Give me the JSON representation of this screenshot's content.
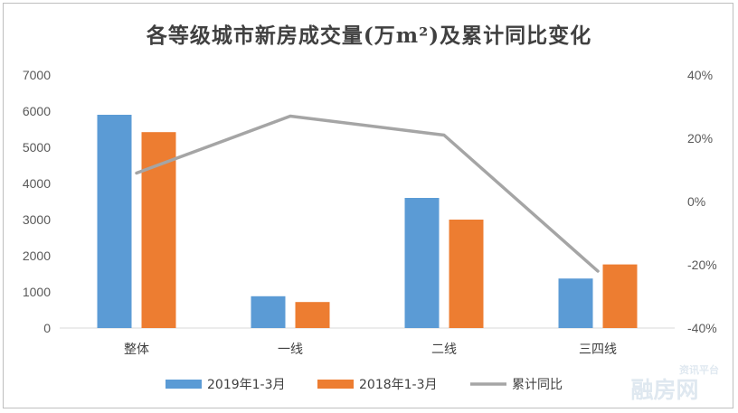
{
  "chart_data": {
    "type": "bar",
    "title": "各等级城市新房成交量(万m²)及累计同比变化",
    "categories": [
      "整体",
      "一线",
      "二线",
      "三四线"
    ],
    "series": [
      {
        "name": "2019年1-3月",
        "type": "bar",
        "axis": "left",
        "color": "#5b9bd5",
        "values": [
          5900,
          880,
          3600,
          1370
        ]
      },
      {
        "name": "2018年1-3月",
        "type": "bar",
        "axis": "left",
        "color": "#ed7d31",
        "values": [
          5420,
          720,
          3000,
          1760
        ]
      },
      {
        "name": "累计同比",
        "type": "line",
        "axis": "right",
        "color": "#a5a5a5",
        "values": [
          9,
          27,
          21,
          -22
        ]
      }
    ],
    "y_left": {
      "min": 0,
      "max": 7000,
      "ticks": [
        "0",
        "1000",
        "2000",
        "3000",
        "4000",
        "5000",
        "6000",
        "7000"
      ]
    },
    "y_right": {
      "min": -40,
      "max": 40,
      "ticks": [
        "-40%",
        "-20%",
        "0%",
        "20%",
        "40%"
      ]
    },
    "legend_position": "bottom",
    "watermark": {
      "line1": "资讯平台",
      "line2": "融房网"
    }
  }
}
